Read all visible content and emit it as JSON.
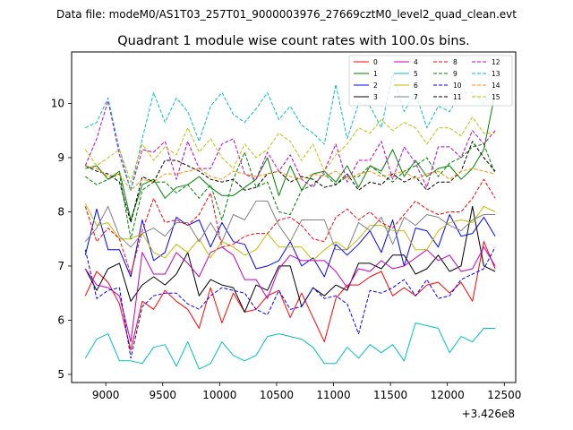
{
  "chart_data": {
    "type": "line",
    "suptitle": "Data file: modeM0/AS1T03_257T01_9000003976_27669cztM0_level2_quad_clean.evt",
    "title": "Quadrant 1 module wise count rates with 100.0s bins.",
    "xlabel": "",
    "ylabel": "",
    "x_offset_label": "+3.426e8",
    "xlim": [
      8700,
      12600
    ],
    "ylim": [
      4.85,
      10.95
    ],
    "xticks": [
      9000,
      9500,
      10000,
      10500,
      11000,
      11500,
      12000,
      12500
    ],
    "yticks": [
      5,
      6,
      7,
      8,
      9,
      10
    ],
    "grid": false,
    "legend_position": "top-right",
    "x": [
      8820,
      8920,
      9020,
      9120,
      9220,
      9320,
      9420,
      9520,
      9620,
      9720,
      9820,
      9920,
      10020,
      10120,
      10220,
      10320,
      10420,
      10520,
      10620,
      10720,
      10820,
      10920,
      11020,
      11120,
      11220,
      11320,
      11420,
      11520,
      11620,
      11720,
      11820,
      11920,
      12020,
      12120,
      12220,
      12320,
      12420
    ],
    "series": [
      {
        "name": "0",
        "color": "#ff0000",
        "dash": "solid",
        "values": [
          6.45,
          6.9,
          6.7,
          6.3,
          5.45,
          6.35,
          6.2,
          6.55,
          6.35,
          6.2,
          5.85,
          6.6,
          5.95,
          6.5,
          6.15,
          6.2,
          6.45,
          6.55,
          6.05,
          6.5,
          6.05,
          5.6,
          6.4,
          6.65,
          6.65,
          6.8,
          6.9,
          6.45,
          6.6,
          6.45,
          6.65,
          6.7,
          6.5,
          6.7,
          6.35,
          7.45,
          6.95
        ]
      },
      {
        "name": "1",
        "color": "#008000",
        "dash": "solid",
        "values": [
          8.8,
          8.85,
          8.6,
          8.75,
          7.85,
          8.5,
          8.6,
          8.25,
          8.45,
          8.5,
          8.65,
          8.45,
          8.3,
          8.3,
          8.45,
          8.6,
          9.0,
          8.3,
          8.85,
          8.4,
          8.7,
          8.75,
          8.55,
          8.85,
          8.45,
          8.85,
          8.75,
          9.15,
          8.65,
          8.95,
          8.65,
          8.8,
          8.85,
          8.6,
          8.8,
          9.15,
          10.2
        ]
      },
      {
        "name": "2",
        "color": "#0000ff",
        "dash": "solid",
        "values": [
          7.2,
          8.05,
          7.3,
          7.3,
          6.8,
          7.85,
          7.1,
          7.25,
          7.9,
          7.75,
          7.85,
          7.35,
          7.8,
          7.45,
          7.4,
          6.95,
          7.0,
          7.1,
          7.45,
          7.0,
          7.15,
          6.8,
          7.4,
          7.2,
          7.4,
          7.65,
          7.25,
          7.85,
          7.0,
          7.7,
          7.65,
          7.35,
          7.95,
          7.55,
          7.6,
          7.9,
          7.55
        ]
      },
      {
        "name": "3",
        "color": "#000000",
        "dash": "solid",
        "values": [
          6.95,
          6.55,
          6.95,
          7.05,
          6.35,
          6.65,
          6.8,
          6.65,
          6.85,
          7.25,
          6.45,
          6.75,
          6.65,
          6.6,
          6.15,
          6.65,
          6.55,
          7.0,
          7.0,
          6.25,
          6.6,
          6.45,
          6.65,
          6.55,
          7.05,
          7.05,
          6.95,
          7.2,
          7.2,
          6.85,
          6.95,
          7.2,
          6.9,
          7.0,
          8.1,
          7.0,
          6.9
        ]
      },
      {
        "name": "4",
        "color": "#bf00bf",
        "dash": "solid",
        "values": [
          6.95,
          6.65,
          6.6,
          6.45,
          5.6,
          7.25,
          6.85,
          6.85,
          7.25,
          7.05,
          6.8,
          7.25,
          7.35,
          7.2,
          6.75,
          6.75,
          6.4,
          6.95,
          7.2,
          7.1,
          7.1,
          7.1,
          6.9,
          6.6,
          6.95,
          6.9,
          7.1,
          6.95,
          7.0,
          7.15,
          7.3,
          7.1,
          7.2,
          6.9,
          6.95,
          7.35,
          7.0
        ]
      },
      {
        "name": "5",
        "color": "#00bfbf",
        "dash": "solid",
        "values": [
          5.3,
          5.65,
          5.75,
          5.25,
          5.25,
          5.2,
          5.5,
          5.55,
          5.15,
          5.6,
          5.1,
          5.2,
          5.6,
          5.35,
          5.25,
          5.35,
          5.7,
          5.75,
          5.7,
          5.65,
          5.5,
          5.2,
          5.2,
          5.5,
          5.3,
          5.55,
          5.4,
          5.55,
          5.25,
          5.95,
          5.9,
          5.85,
          5.4,
          5.7,
          5.6,
          5.85,
          5.85
        ]
      },
      {
        "name": "6",
        "color": "#bfbf00",
        "dash": "solid",
        "values": [
          8.15,
          7.75,
          7.8,
          7.5,
          7.5,
          7.6,
          7.25,
          7.15,
          7.4,
          7.25,
          7.5,
          7.15,
          7.45,
          7.35,
          7.2,
          7.3,
          7.6,
          7.35,
          7.35,
          7.35,
          7.1,
          7.3,
          7.45,
          7.3,
          7.5,
          7.75,
          7.75,
          7.65,
          7.65,
          7.3,
          7.3,
          7.65,
          7.8,
          7.85,
          7.8,
          8.1,
          8.0
        ]
      },
      {
        "name": "7",
        "color": "#808080",
        "dash": "solid",
        "values": [
          7.45,
          7.7,
          8.1,
          7.55,
          7.35,
          7.6,
          7.7,
          7.55,
          7.8,
          7.8,
          7.45,
          7.8,
          7.45,
          7.95,
          7.85,
          8.2,
          8.2,
          7.75,
          7.45,
          7.85,
          7.85,
          7.85,
          7.3,
          7.3,
          7.8,
          7.65,
          7.9,
          7.4,
          7.9,
          7.75,
          7.95,
          7.9,
          7.75,
          7.65,
          7.85,
          7.95,
          7.95
        ]
      },
      {
        "name": "8",
        "color": "#ff0000",
        "dash": "dashed",
        "values": [
          8.1,
          7.45,
          7.7,
          7.5,
          6.85,
          7.65,
          8.25,
          7.8,
          7.85,
          7.75,
          7.95,
          8.35,
          7.35,
          7.4,
          7.55,
          7.6,
          7.6,
          7.85,
          7.9,
          7.75,
          7.5,
          7.45,
          7.9,
          8.05,
          7.85,
          8.0,
          7.8,
          7.7,
          7.95,
          8.2,
          8.05,
          7.95,
          8.0,
          8.0,
          8.25,
          8.6,
          8.25
        ]
      },
      {
        "name": "9",
        "color": "#008000",
        "dash": "dashed",
        "values": [
          8.65,
          8.5,
          8.6,
          8.7,
          7.5,
          8.4,
          8.55,
          8.55,
          8.35,
          8.5,
          8.25,
          8.5,
          7.85,
          8.6,
          9.1,
          8.45,
          8.55,
          8.0,
          7.95,
          8.4,
          8.5,
          8.7,
          8.5,
          8.65,
          8.65,
          8.85,
          8.7,
          8.55,
          8.75,
          8.85,
          9.0,
          8.65,
          8.9,
          9.0,
          9.2,
          9.25,
          8.7
        ]
      },
      {
        "name": "10",
        "color": "#0000ff",
        "dash": "dashed",
        "values": [
          7.3,
          6.4,
          6.55,
          6.6,
          5.3,
          6.25,
          6.45,
          6.5,
          6.5,
          6.3,
          6.2,
          6.45,
          6.6,
          6.55,
          6.5,
          6.2,
          6.1,
          6.55,
          6.2,
          6.25,
          6.6,
          6.4,
          6.45,
          6.3,
          5.75,
          6.55,
          6.5,
          6.6,
          6.75,
          6.45,
          6.75,
          6.4,
          6.45,
          6.75,
          6.85,
          6.95,
          7.35
        ]
      },
      {
        "name": "11",
        "color": "#000000",
        "dash": "dashed",
        "values": [
          8.85,
          8.75,
          8.7,
          8.55,
          7.8,
          8.65,
          8.55,
          8.95,
          8.95,
          8.85,
          8.75,
          8.6,
          8.55,
          8.6,
          8.4,
          8.45,
          8.7,
          8.75,
          8.55,
          8.65,
          8.6,
          8.45,
          8.5,
          8.7,
          8.4,
          8.55,
          8.5,
          8.7,
          8.55,
          8.65,
          8.4,
          8.55,
          8.55,
          8.75,
          9.3,
          9.0,
          8.75
        ]
      },
      {
        "name": "12",
        "color": "#bf00bf",
        "dash": "dashed",
        "values": [
          8.85,
          9.35,
          10.05,
          9.05,
          8.4,
          9.15,
          9.1,
          9.3,
          8.6,
          9.3,
          8.8,
          8.8,
          9.25,
          9.35,
          8.7,
          8.6,
          9.1,
          8.75,
          9.05,
          8.6,
          8.45,
          8.75,
          9.25,
          8.55,
          8.95,
          8.95,
          9.3,
          8.6,
          9.2,
          8.9,
          8.45,
          9.2,
          9.2,
          9.0,
          9.5,
          9.25,
          9.5
        ]
      },
      {
        "name": "13",
        "color": "#00bfbf",
        "dash": "dashed",
        "values": [
          9.55,
          9.65,
          10.1,
          9.15,
          8.4,
          9.35,
          10.2,
          9.65,
          10.1,
          9.85,
          9.3,
          9.95,
          10.2,
          9.8,
          9.65,
          9.9,
          10.2,
          9.7,
          9.95,
          9.6,
          9.45,
          9.25,
          10.35,
          9.35,
          10.0,
          9.95,
          9.55,
          10.55,
          9.85,
          10.2,
          9.55,
          9.95,
          9.85,
          10.2,
          10.2,
          10.0,
          10.35
        ]
      },
      {
        "name": "14",
        "color": "#ff8c00",
        "dash": "dashed",
        "values": [
          8.85,
          8.8,
          8.65,
          8.7,
          8.4,
          8.6,
          8.55,
          8.7,
          8.7,
          8.75,
          8.8,
          8.65,
          8.6,
          8.75,
          8.7,
          8.65,
          8.7,
          8.75,
          8.65,
          8.6,
          8.7,
          8.65,
          8.75,
          8.6,
          8.7,
          8.75,
          8.65,
          8.7,
          8.75,
          8.6,
          8.7,
          8.75,
          8.6,
          8.75,
          8.8,
          8.75,
          8.7
        ]
      },
      {
        "name": "15",
        "color": "#bfbf00",
        "dash": "dashed",
        "values": [
          9.15,
          8.85,
          9.0,
          9.15,
          8.55,
          9.25,
          8.95,
          9.2,
          9.05,
          9.55,
          9.1,
          9.35,
          9.0,
          8.8,
          9.25,
          9.0,
          9.15,
          9.45,
          9.3,
          8.95,
          9.25,
          8.75,
          9.05,
          9.25,
          9.55,
          9.45,
          9.7,
          9.5,
          9.65,
          9.55,
          9.25,
          9.55,
          9.55,
          9.4,
          9.75,
          9.45,
          9.45
        ]
      }
    ]
  }
}
